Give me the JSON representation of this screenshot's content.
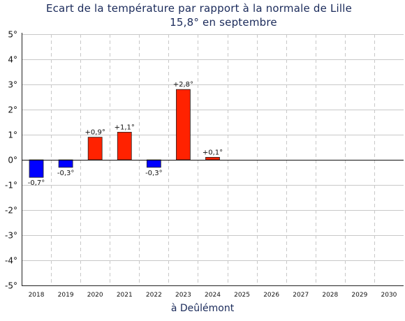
{
  "chart_data": {
    "type": "bar",
    "title": "Ecart de la température par rapport à la normale de Lille",
    "subtitle": "15,8° en septembre",
    "xlabel": "à Deûlémont",
    "ylabel": "",
    "categories": [
      "2018",
      "2019",
      "2020",
      "2021",
      "2022",
      "2023",
      "2024",
      "2025",
      "2026",
      "2027",
      "2028",
      "2029",
      "2030"
    ],
    "values": [
      -0.7,
      -0.3,
      0.9,
      1.1,
      -0.3,
      2.8,
      0.1,
      null,
      null,
      null,
      null,
      null,
      null
    ],
    "data_labels": [
      "-0,7°",
      "-0,3°",
      "+0,9°",
      "+1,1°",
      "-0,3°",
      "+2,8°",
      "+0,1°",
      "",
      "",
      "",
      "",
      "",
      ""
    ],
    "ylim": [
      -5,
      5
    ],
    "yticks": [
      5,
      4,
      3,
      2,
      1,
      0,
      -1,
      -2,
      -3,
      -4,
      -5
    ],
    "ytick_labels": [
      "5°",
      "4°",
      "3°",
      "2°",
      "1°",
      "0°",
      "-1°",
      "-2°",
      "-3°",
      "-4°",
      "-5°"
    ],
    "grid": true,
    "colors": {
      "positive": "#ff2200",
      "negative": "#0000ff",
      "grid": "#c8c8c8",
      "title": "#1a2a5a"
    }
  }
}
